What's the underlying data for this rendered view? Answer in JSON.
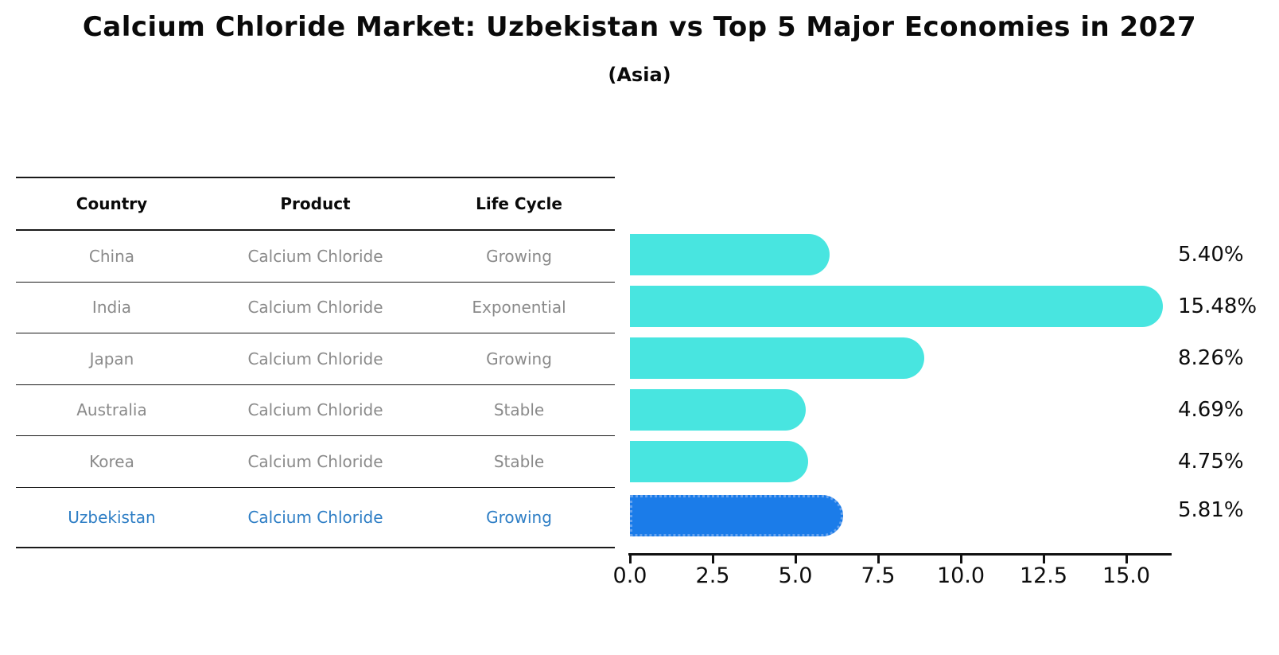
{
  "title": "Calcium Chloride Market: Uzbekistan vs Top 5 Major Economies in 2027",
  "subtitle": "(Asia)",
  "colors": {
    "bar": "#48E5E0",
    "highlight_bar": "#1B7CE9",
    "highlight_border": "#66A3EE",
    "highlight_text": "#2E7EC5",
    "table_text": "#8A8A8A",
    "heading_text": "#0A0A0A"
  },
  "table": {
    "headers": [
      "Country",
      "Product",
      "Life Cycle"
    ],
    "rows": [
      {
        "country": "China",
        "product": "Calcium Chloride",
        "life_cycle": "Growing",
        "highlight": false
      },
      {
        "country": "India",
        "product": "Calcium Chloride",
        "life_cycle": "Exponential",
        "highlight": false
      },
      {
        "country": "Japan",
        "product": "Calcium Chloride",
        "life_cycle": "Growing",
        "highlight": false
      },
      {
        "country": "Australia",
        "product": "Calcium Chloride",
        "life_cycle": "Stable",
        "highlight": false
      },
      {
        "country": "Korea",
        "product": "Calcium Chloride",
        "life_cycle": "Stable",
        "highlight": false
      },
      {
        "country": "Uzbekistan",
        "product": "Calcium Chloride",
        "life_cycle": "Growing",
        "highlight": true
      }
    ]
  },
  "chart_data": {
    "type": "bar",
    "orientation": "horizontal",
    "title": "Calcium Chloride Market: Uzbekistan vs Top 5 Major Economies in 2027",
    "subtitle": "(Asia)",
    "categories": [
      "China",
      "India",
      "Japan",
      "Australia",
      "Korea",
      "Uzbekistan"
    ],
    "values": [
      5.4,
      15.48,
      8.26,
      4.69,
      4.75,
      5.81
    ],
    "labels": [
      "5.40%",
      "15.48%",
      "8.26%",
      "4.69%",
      "4.75%",
      "5.81%"
    ],
    "unit": "%",
    "highlight_index": 5,
    "xlabel": "",
    "ylabel": "",
    "xlim": [
      0,
      16.35
    ],
    "xticks": [
      0.0,
      2.5,
      5.0,
      7.5,
      10.0,
      12.5,
      15.0
    ],
    "xtick_labels": [
      "0.0",
      "2.5",
      "5.0",
      "7.5",
      "10.0",
      "12.5",
      "15.0"
    ],
    "grid": false,
    "legend": false
  }
}
